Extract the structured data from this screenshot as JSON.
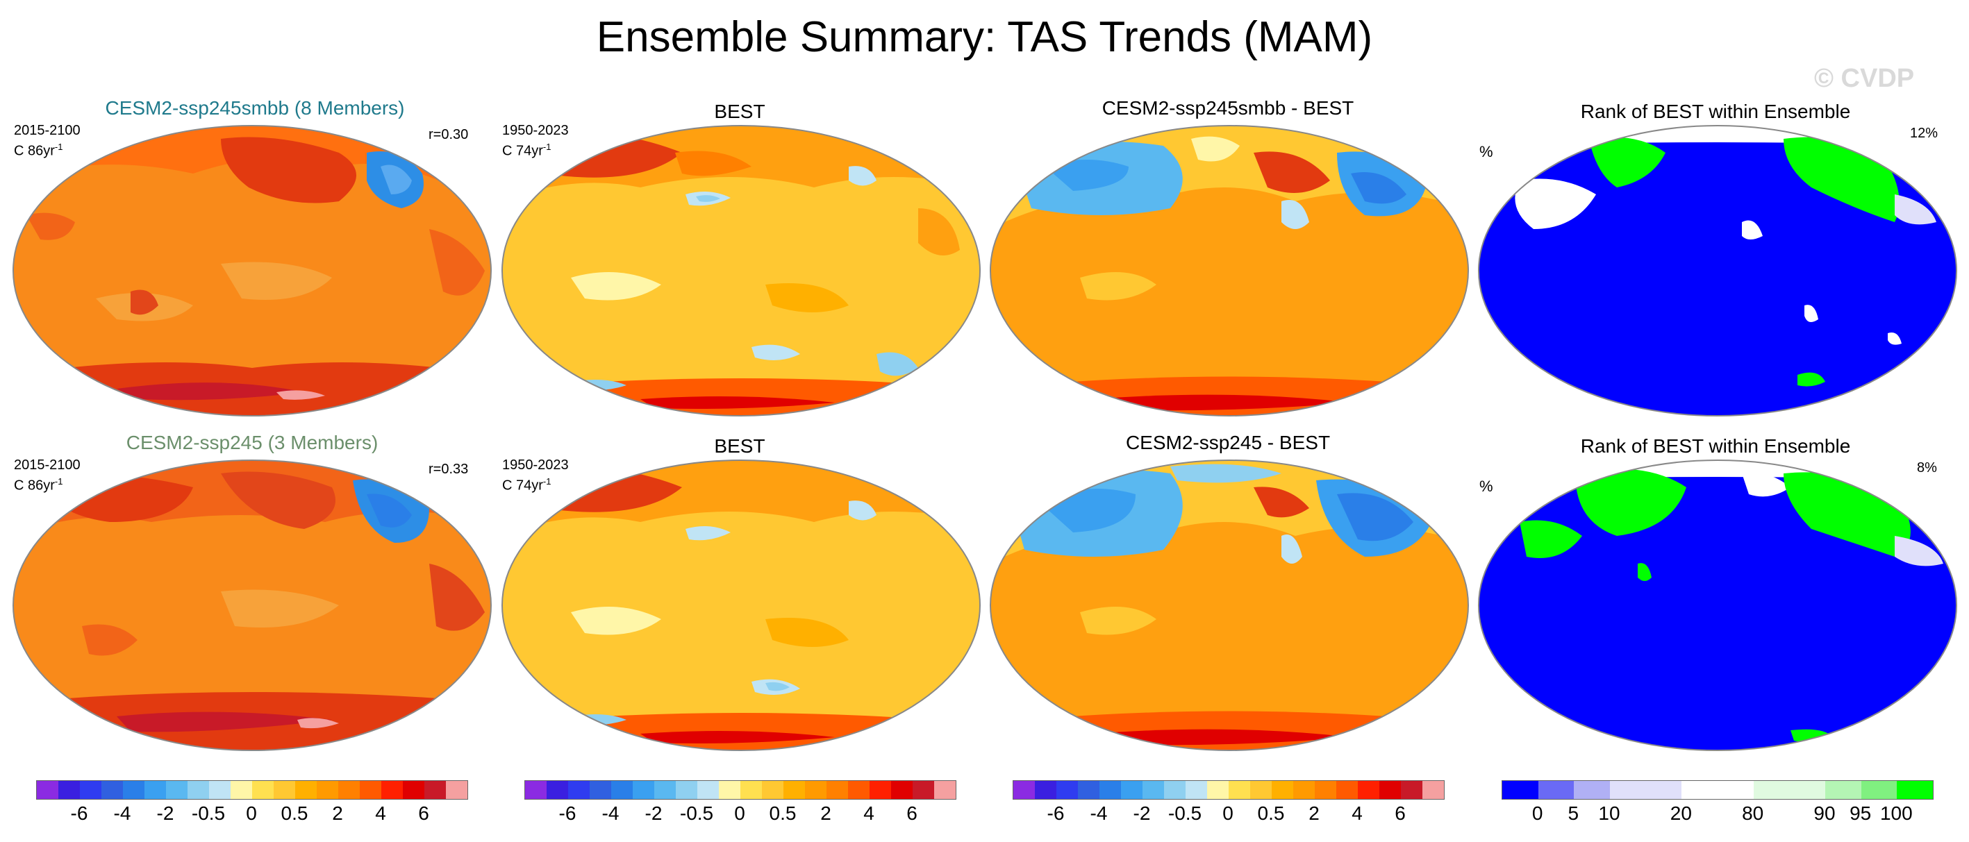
{
  "page": {
    "title": "Ensemble Summary: TAS Trends (MAM)",
    "watermark": "© CVDP"
  },
  "rows": [
    {
      "ensemble": {
        "title": "CESM2-ssp245smbb (8 Members)",
        "title_color": "#1f7a8c",
        "period": "2015-2100",
        "units_prefix": "C 86yr",
        "units_exp": "-1",
        "corr": "r=0.30"
      },
      "obs": {
        "title": "BEST",
        "period": "1950-2023",
        "units_prefix": "C 74yr",
        "units_exp": "-1"
      },
      "diff": {
        "title": "CESM2-ssp245smbb - BEST"
      },
      "rank": {
        "title": "Rank of BEST within Ensemble",
        "unit": "%",
        "pct": "12%"
      }
    },
    {
      "ensemble": {
        "title": "CESM2-ssp245 (3 Members)",
        "title_color": "#6b8f6b",
        "period": "2015-2100",
        "units_prefix": "C 86yr",
        "units_exp": "-1",
        "corr": "r=0.33"
      },
      "obs": {
        "title": "BEST",
        "period": "1950-2023",
        "units_prefix": "C 74yr",
        "units_exp": "-1"
      },
      "diff": {
        "title": "CESM2-ssp245 - BEST"
      },
      "rank": {
        "title": "Rank of BEST within Ensemble",
        "unit": "%",
        "pct": "8%"
      }
    }
  ],
  "colorbars": {
    "trend": {
      "colors": [
        "#8b2be2",
        "#3a1fe0",
        "#2f3cf0",
        "#3060e0",
        "#2a7fe8",
        "#3aa0f0",
        "#5ab8f0",
        "#8fd0f0",
        "#c0e4f5",
        "#fff6a8",
        "#ffe050",
        "#ffc832",
        "#ffb000",
        "#ff9a00",
        "#ff8000",
        "#ff5a00",
        "#ff2000",
        "#e00000",
        "#c81a28",
        "#f5a0a0"
      ],
      "labels": [
        "-6",
        "-4",
        "-2",
        "-0.5",
        "0",
        "0.5",
        "2",
        "4",
        "6"
      ],
      "label_bins": [
        2,
        4,
        6,
        8,
        10,
        12,
        14,
        16,
        18
      ]
    },
    "rank": {
      "colors": [
        "#0000ff",
        "#6a6af5",
        "#b0b0f5",
        "#e0e0fa",
        "#e0e0fa",
        "#ffffff",
        "#ffffff",
        "#e0fae0",
        "#e0fae0",
        "#b4f5b4",
        "#80f080",
        "#00ff00"
      ],
      "labels": [
        "0",
        "5",
        "10",
        "20",
        "80",
        "90",
        "95",
        "100"
      ],
      "label_bins": [
        1,
        2,
        3,
        5,
        7,
        9,
        10,
        11
      ]
    }
  }
}
